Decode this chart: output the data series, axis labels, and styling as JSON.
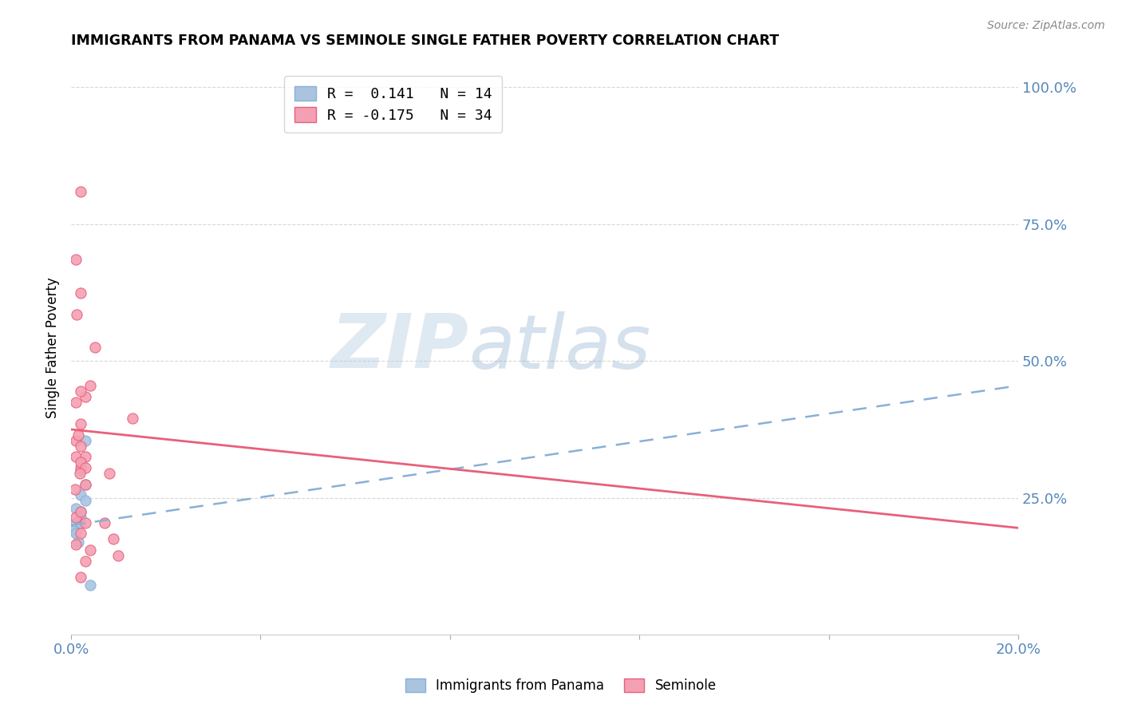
{
  "title": "IMMIGRANTS FROM PANAMA VS SEMINOLE SINGLE FATHER POVERTY CORRELATION CHART",
  "source": "Source: ZipAtlas.com",
  "ylabel": "Single Father Poverty",
  "ytick_labels": [
    "100.0%",
    "75.0%",
    "50.0%",
    "25.0%"
  ],
  "ytick_values": [
    1.0,
    0.75,
    0.5,
    0.25
  ],
  "legend_r1": "R =  0.141   N = 14",
  "legend_r2": "R = -0.175   N = 34",
  "blue_scatter_x": [
    0.001,
    0.002,
    0.0005,
    0.002,
    0.003,
    0.002,
    0.001,
    0.003,
    0.002,
    0.001,
    0.0015,
    0.004,
    0.002,
    0.003
  ],
  "blue_scatter_y": [
    0.205,
    0.225,
    0.19,
    0.255,
    0.275,
    0.3,
    0.23,
    0.355,
    0.205,
    0.185,
    0.17,
    0.09,
    0.215,
    0.245
  ],
  "pink_scatter_x": [
    0.001,
    0.002,
    0.001,
    0.0015,
    0.002,
    0.003,
    0.002,
    0.001,
    0.002,
    0.003,
    0.002,
    0.0008,
    0.003,
    0.004,
    0.005,
    0.0012,
    0.002,
    0.001,
    0.002,
    0.001,
    0.003,
    0.002,
    0.003,
    0.0018,
    0.007,
    0.009,
    0.002,
    0.01,
    0.013,
    0.008,
    0.002,
    0.004,
    0.001,
    0.003
  ],
  "pink_scatter_y": [
    0.355,
    0.345,
    0.325,
    0.365,
    0.385,
    0.435,
    0.445,
    0.425,
    0.305,
    0.325,
    0.315,
    0.265,
    0.275,
    0.455,
    0.525,
    0.585,
    0.625,
    0.685,
    0.81,
    0.215,
    0.205,
    0.185,
    0.305,
    0.295,
    0.205,
    0.175,
    0.105,
    0.145,
    0.395,
    0.295,
    0.225,
    0.155,
    0.165,
    0.135
  ],
  "blue_line_x": [
    0.0,
    0.2
  ],
  "blue_line_y": [
    0.2,
    0.455
  ],
  "pink_line_x": [
    0.0,
    0.2
  ],
  "pink_line_y": [
    0.375,
    0.195
  ],
  "blue_color": "#aac4e0",
  "pink_color": "#f4a0b4",
  "blue_line_color": "#88b0d8",
  "pink_line_color": "#e8607a",
  "right_axis_color": "#5588bb",
  "watermark_zip": "ZIP",
  "watermark_atlas": "atlas",
  "background_color": "#ffffff",
  "grid_color": "#d8d8d8",
  "scatter_size": 90,
  "xmin": 0.0,
  "xmax": 0.2,
  "ymin": 0.0,
  "ymax": 1.05,
  "xtick_minor_positions": [
    0.04,
    0.08,
    0.12,
    0.16
  ],
  "xtick_label_left": "0.0%",
  "xtick_label_right": "20.0%"
}
